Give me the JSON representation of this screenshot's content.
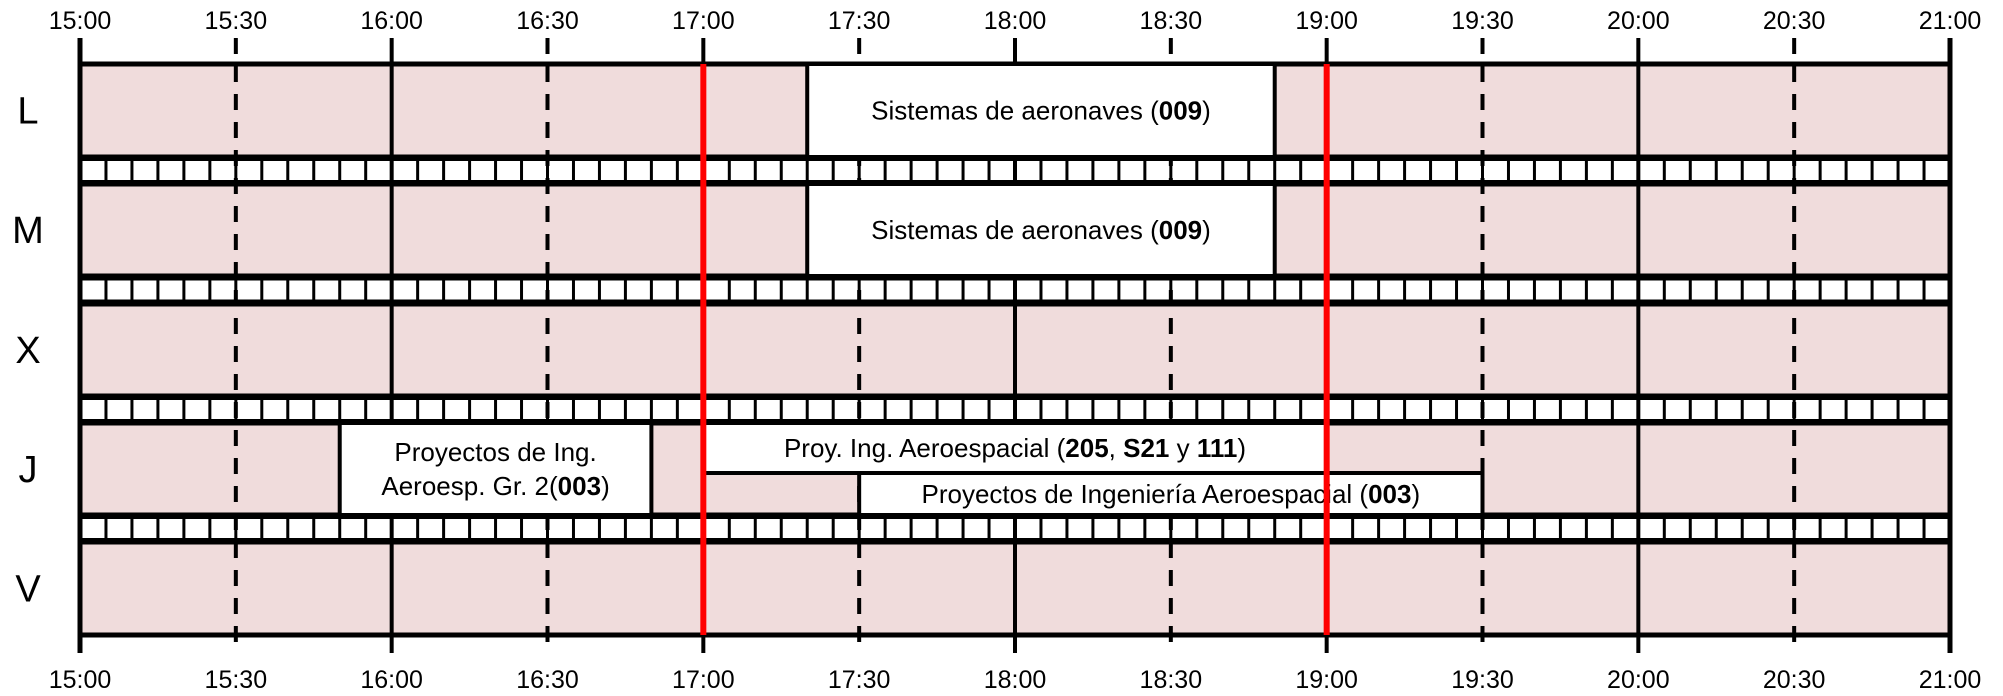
{
  "timeline": {
    "start": "15:00",
    "end": "21:00",
    "ticks": [
      "15:00",
      "15:30",
      "16:00",
      "16:30",
      "17:00",
      "17:30",
      "18:00",
      "18:30",
      "19:00",
      "19:30",
      "20:00",
      "20:30",
      "21:00"
    ]
  },
  "days": [
    {
      "id": "L",
      "label": "L"
    },
    {
      "id": "M",
      "label": "M"
    },
    {
      "id": "X",
      "label": "X"
    },
    {
      "id": "J",
      "label": "J"
    },
    {
      "id": "V",
      "label": "V"
    }
  ],
  "red_lines": [
    "17:00",
    "19:00"
  ],
  "events": [
    {
      "day": "L",
      "start": "17:20",
      "end": "18:50",
      "lane": "full",
      "lines": [
        [
          {
            "t": "Sistemas de aeronaves ("
          },
          {
            "t": "009",
            "b": true
          },
          {
            "t": ")"
          }
        ]
      ]
    },
    {
      "day": "M",
      "start": "17:20",
      "end": "18:50",
      "lane": "full",
      "lines": [
        [
          {
            "t": "Sistemas de aeronaves ("
          },
          {
            "t": "009",
            "b": true
          },
          {
            "t": ")"
          }
        ]
      ]
    },
    {
      "day": "J",
      "start": "15:50",
      "end": "16:50",
      "lane": "full",
      "lines": [
        [
          {
            "t": "Proyectos de Ing."
          }
        ],
        [
          {
            "t": "Aeroesp. Gr. 2("
          },
          {
            "t": "003",
            "b": true
          },
          {
            "t": ")"
          }
        ]
      ]
    },
    {
      "day": "J",
      "start": "17:00",
      "end": "19:00",
      "lane": "top",
      "lines": [
        [
          {
            "t": "Proy. Ing. Aeroespacial ("
          },
          {
            "t": "205",
            "b": true
          },
          {
            "t": ", "
          },
          {
            "t": "S21",
            "b": true
          },
          {
            "t": " y "
          },
          {
            "t": "111",
            "b": true
          },
          {
            "t": ")"
          }
        ]
      ]
    },
    {
      "day": "J",
      "start": "17:30",
      "end": "19:30",
      "lane": "bottom",
      "lines": [
        [
          {
            "t": "Proyectos de Ingeniería Aeroespacial ("
          },
          {
            "t": "003",
            "b": true
          },
          {
            "t": ")"
          }
        ]
      ]
    }
  ],
  "colors": {
    "cell_fill": "#f0dcdc",
    "event_fill": "#ffffff",
    "grid": "#000000",
    "highlight": "#ff0000"
  }
}
